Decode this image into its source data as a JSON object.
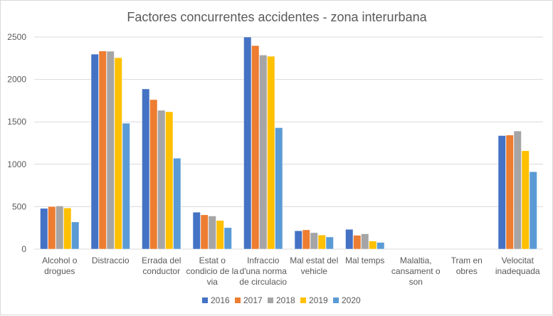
{
  "chart_data": {
    "type": "bar",
    "title": "Factores concurrentes accidentes - zona interurbana",
    "categories": [
      [
        "Alcohol o",
        "drogues"
      ],
      [
        "Distraccio"
      ],
      [
        "Errada del",
        "conductor"
      ],
      [
        "Estat o",
        "condicio de la",
        "via"
      ],
      [
        "Infraccio",
        "d'una norma",
        "de circulacio"
      ],
      [
        "Mal estat del",
        "vehicle"
      ],
      [
        "Mal temps"
      ],
      [
        "Malaltia,",
        "cansament o",
        "son"
      ],
      [
        "Tram en",
        "obres"
      ],
      [
        "Velocitat",
        "inadequada"
      ]
    ],
    "series": [
      {
        "name": "2016",
        "color": "#4472c4",
        "values": [
          480,
          2298,
          1888,
          435,
          2500,
          216,
          233,
          0,
          0,
          1338
        ]
      },
      {
        "name": "2017",
        "color": "#ed7d31",
        "values": [
          502,
          2335,
          1762,
          404,
          2399,
          227,
          163,
          0,
          0,
          1344
        ]
      },
      {
        "name": "2018",
        "color": "#a5a5a5",
        "values": [
          508,
          2332,
          1636,
          390,
          2287,
          194,
          180,
          0,
          0,
          1392
        ]
      },
      {
        "name": "2019",
        "color": "#ffc000",
        "values": [
          485,
          2256,
          1619,
          337,
          2273,
          166,
          95,
          0,
          0,
          1159
        ]
      },
      {
        "name": "2020",
        "color": "#5b9bd5",
        "values": [
          320,
          1484,
          1072,
          253,
          1431,
          143,
          79,
          0,
          0,
          912
        ]
      }
    ],
    "ylim": [
      0,
      2500
    ],
    "yticks": [
      0,
      500,
      1000,
      1500,
      2000,
      2500
    ],
    "grid": true,
    "legend": "bottom"
  }
}
